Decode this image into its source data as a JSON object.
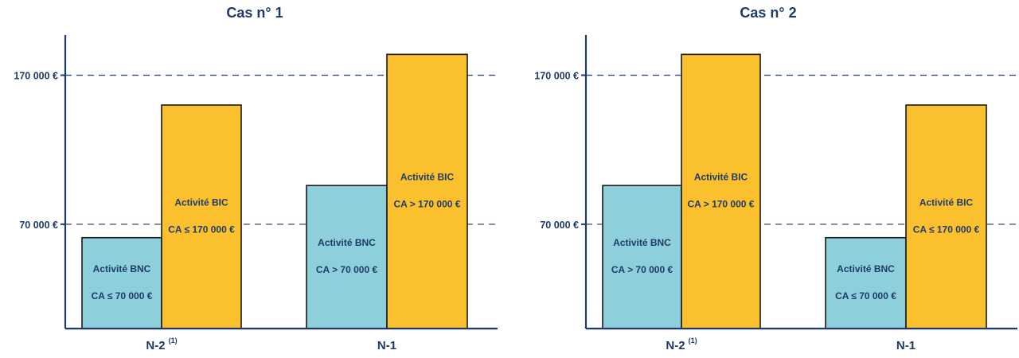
{
  "chart_data": [
    {
      "type": "bar",
      "title": "Cas n° 1",
      "categories": [
        {
          "label": "N-2",
          "superscript": "(1)"
        },
        {
          "label": "N-1",
          "superscript": ""
        }
      ],
      "ylim": [
        0,
        197000
      ],
      "yticks": [
        {
          "value": 70000,
          "label": "70 000 €"
        },
        {
          "value": 170000,
          "label": "170 000 €"
        }
      ],
      "series": [
        {
          "key": "bnc",
          "values": [
            61000,
            96000
          ],
          "labels": [
            [
              "Activité BNC",
              "CA ≤ 70 000 €"
            ],
            [
              "Activité BNC",
              "CA > 70 000 €"
            ]
          ]
        },
        {
          "key": "bic",
          "values": [
            150000,
            184000
          ],
          "labels": [
            [
              "Activité BIC",
              "CA ≤ 170 000 €"
            ],
            [
              "Activité BIC",
              "CA > 170 000 €"
            ]
          ]
        }
      ]
    },
    {
      "type": "bar",
      "title": "Cas n° 2",
      "categories": [
        {
          "label": "N-2",
          "superscript": "(1)"
        },
        {
          "label": "N-1",
          "superscript": ""
        }
      ],
      "ylim": [
        0,
        197000
      ],
      "yticks": [
        {
          "value": 70000,
          "label": "70 000 €"
        },
        {
          "value": 170000,
          "label": "170 000 €"
        }
      ],
      "series": [
        {
          "key": "bnc",
          "values": [
            96000,
            61000
          ],
          "labels": [
            [
              "Activité BNC",
              "CA > 70 000 €"
            ],
            [
              "Activité BNC",
              "CA ≤ 70 000 €"
            ]
          ]
        },
        {
          "key": "bic",
          "values": [
            184000,
            150000
          ],
          "labels": [
            [
              "Activité BIC",
              "CA > 170 000 €"
            ],
            [
              "Activité BIC",
              "CA ≤ 170 000 €"
            ]
          ]
        }
      ]
    }
  ],
  "colors": {
    "axis": "#1f3a68",
    "text": "#1f3a68",
    "gridline": "#2b4a7a",
    "bnc": "#8ecfdc",
    "bic": "#fbc02d",
    "bar_stroke": "#1a1a1a"
  }
}
